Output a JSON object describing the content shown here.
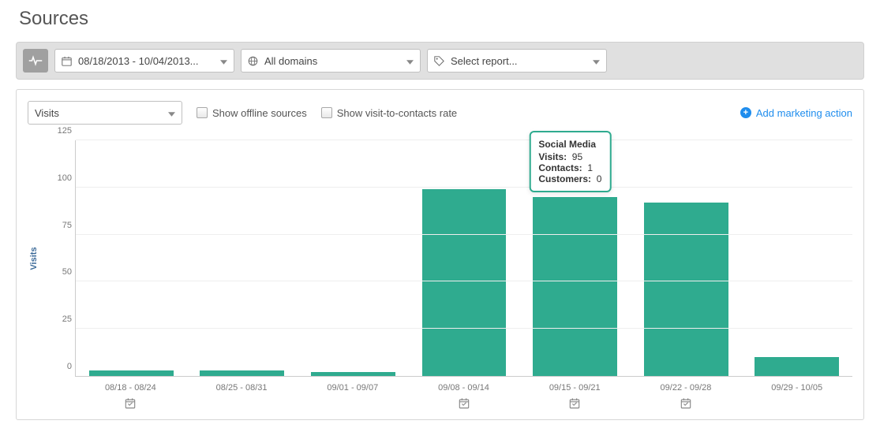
{
  "page_title": "Sources",
  "filters": {
    "date_range": "08/18/2013 - 10/04/2013...",
    "domain": "All domains",
    "report": "Select report..."
  },
  "controls": {
    "metric": "Visits",
    "show_offline": "Show offline sources",
    "show_v2c": "Show visit-to-contacts rate",
    "add_action": "Add marketing action"
  },
  "chart": {
    "type": "bar",
    "y_axis_label": "Visits",
    "ymax": 125,
    "ytick_step": 25,
    "bar_color": "#2fab8f",
    "grid_color": "#eeeeee",
    "categories": [
      {
        "label": "08/18 - 08/24",
        "value": 3,
        "marker": true
      },
      {
        "label": "08/25 - 08/31",
        "value": 3,
        "marker": false
      },
      {
        "label": "09/01 - 09/07",
        "value": 2,
        "marker": false
      },
      {
        "label": "09/08 - 09/14",
        "value": 99,
        "marker": true
      },
      {
        "label": "09/15 - 09/21",
        "value": 95,
        "marker": true
      },
      {
        "label": "09/22 - 09/28",
        "value": 92,
        "marker": true
      },
      {
        "label": "09/29 - 10/05",
        "value": 10,
        "marker": false
      }
    ],
    "tooltip": {
      "title": "Social Media",
      "rows": [
        {
          "k": "Visits:",
          "v": "95"
        },
        {
          "k": "Contacts:",
          "v": "1"
        },
        {
          "k": "Customers:",
          "v": "0"
        }
      ],
      "on_index": 4
    }
  },
  "colors": {
    "accent_link": "#1f8ded"
  }
}
